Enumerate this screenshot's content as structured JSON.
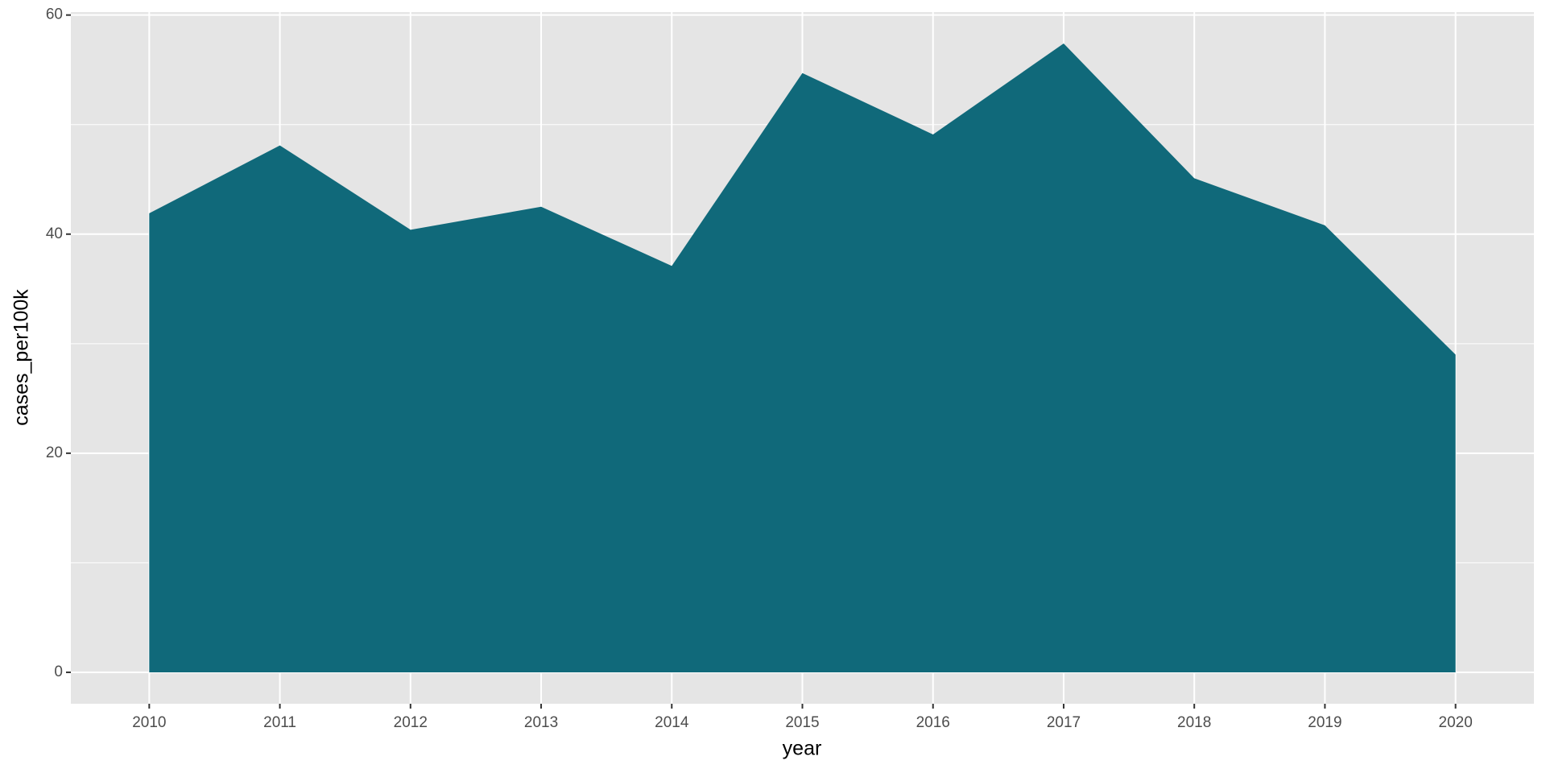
{
  "chart_data": {
    "type": "area",
    "x_label": "year",
    "y_label": "cases_per100k",
    "x": [
      2010,
      2011,
      2012,
      2013,
      2014,
      2015,
      2016,
      2017,
      2018,
      2019,
      2020
    ],
    "values": [
      41.9,
      48.1,
      40.4,
      42.5,
      37.1,
      54.7,
      49.1,
      57.4,
      45.1,
      40.8,
      29.0
    ],
    "color": "#10697a",
    "xlim": [
      2009.4,
      2020.6
    ],
    "xticks": [
      2010,
      2011,
      2012,
      2013,
      2014,
      2015,
      2016,
      2017,
      2018,
      2019,
      2020
    ],
    "ylim": [
      -2.87,
      60.27
    ],
    "yticks": [
      0,
      20,
      40,
      60
    ],
    "minor_yticks": [
      10,
      30,
      50
    ],
    "grid": true
  }
}
